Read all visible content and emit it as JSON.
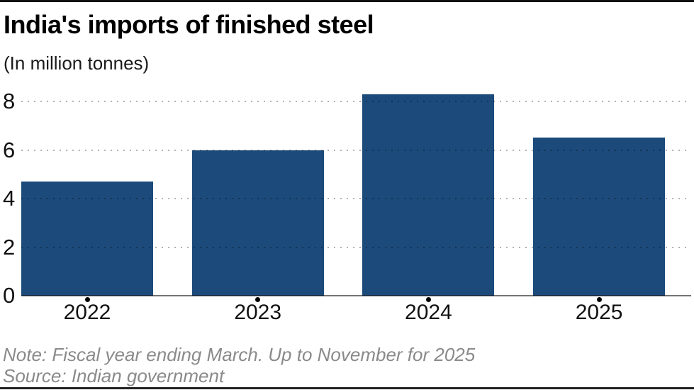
{
  "header": {
    "title": "India's imports of finished steel",
    "subtitle": "(In million tonnes)"
  },
  "chart_data": {
    "type": "bar",
    "categories": [
      "2022",
      "2023",
      "2024",
      "2025"
    ],
    "values": [
      4.7,
      6.0,
      8.3,
      6.5
    ],
    "title": "India's imports of finished steel",
    "subtitle": "(In million tonnes)",
    "xlabel": "",
    "ylabel": "",
    "ylim": [
      0,
      8.6
    ],
    "yticks": [
      0,
      2,
      4,
      6,
      8
    ],
    "grid": "horizontal dotted, drawn over bars",
    "legend": "none",
    "bar_color": "#1b4a7b"
  },
  "footer": {
    "note": "Note: Fiscal year ending March. Up to November for 2025",
    "source": "Source: Indian government"
  },
  "colors": {
    "bar": "#1b4a7b",
    "note_text": "#8a8a8a",
    "axis_line": "#808080",
    "rule": "#111111",
    "background": "#ffffff"
  }
}
